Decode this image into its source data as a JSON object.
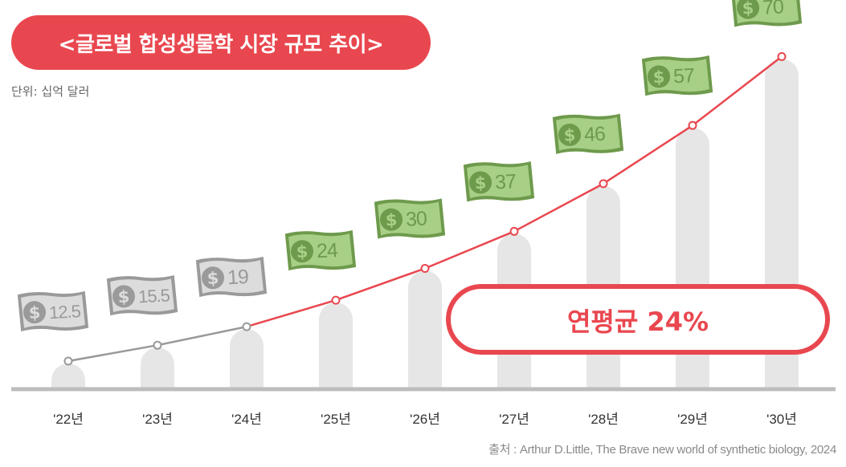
{
  "title": "<글로벌 합성생물학 시장 규모 추이>",
  "unit_label": "단위: 십억 달러",
  "source": "출처 : Arthur D.Little, The Brave new world of synthetic biology, 2024",
  "cagr_label": "연평균 24%",
  "currency_symbol": "$",
  "colors": {
    "accent": "#e9474f",
    "bar": "#e6e6e6",
    "actual_line": "#999999",
    "forecast_line": "#e9474f",
    "bill_green": "#6e9a4c",
    "bill_green_light": "#a8cf86",
    "bill_gray": "#9a9a9a",
    "bill_gray_light": "#dcdcdc",
    "axis": "#bdbdbd"
  },
  "chart_data": {
    "type": "bar",
    "categories": [
      "'22년",
      "'23년",
      "'24년",
      "'25년",
      "'26년",
      "'27년",
      "'28년",
      "'29년",
      "'30년"
    ],
    "values": [
      12.5,
      15.5,
      19,
      24,
      30,
      37,
      46,
      57,
      70
    ],
    "value_labels": [
      "12.5",
      "15.5",
      "19",
      "24",
      "30",
      "37",
      "46",
      "57",
      "70"
    ],
    "forecast_start_index": 3,
    "line_overlay": true,
    "ylim": [
      0,
      70
    ],
    "title": "<글로벌 합성생물학 시장 규모 추이>",
    "ylabel": "단위: 십억 달러",
    "grid": false
  }
}
